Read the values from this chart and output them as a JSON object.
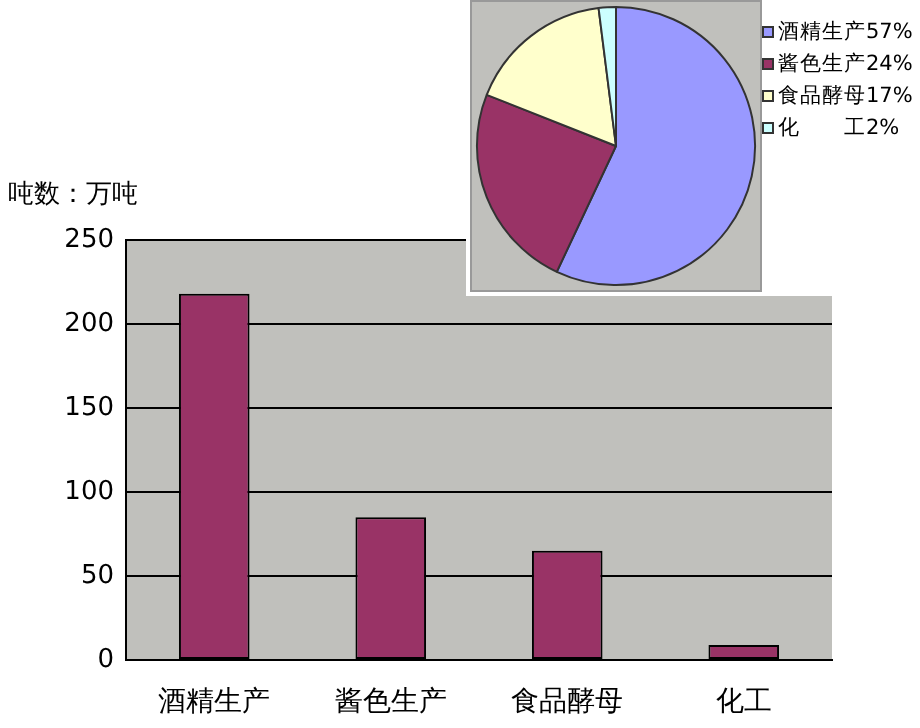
{
  "chart_data": [
    {
      "type": "bar",
      "ylabel": "吨数：万吨",
      "categories": [
        "酒精生产",
        "酱色生产",
        "食品酵母",
        "化工"
      ],
      "values": [
        218,
        85,
        65,
        9
      ],
      "color": "#993366",
      "ylim": [
        0,
        250
      ],
      "yticks": [
        0,
        50,
        100,
        150,
        200,
        250
      ],
      "grid": "y"
    },
    {
      "type": "pie",
      "categories": [
        "酒精生产",
        "酱色生产",
        "食品酵母",
        "化　　工"
      ],
      "values": [
        57,
        24,
        17,
        2
      ],
      "value_labels": [
        "57%",
        "24%",
        "17%",
        "2%"
      ],
      "colors": [
        "#9999ff",
        "#993366",
        "#ffffcc",
        "#ccffff"
      ],
      "legend": "right"
    }
  ]
}
